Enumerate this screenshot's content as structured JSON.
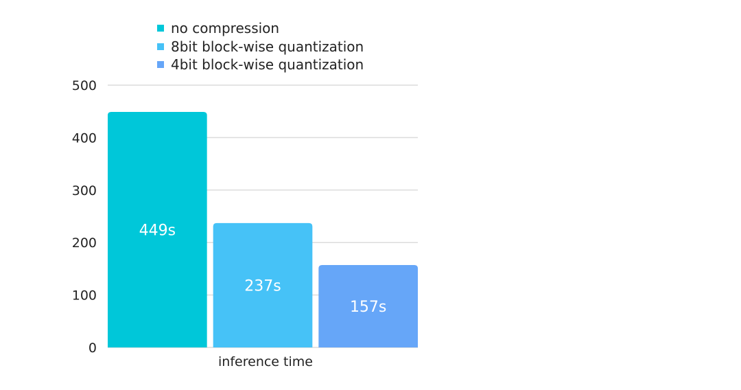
{
  "chart_data": {
    "type": "bar",
    "categories": [
      "inference time"
    ],
    "series": [
      {
        "name": "no compression",
        "values": [
          449
        ],
        "label": "449s",
        "color": "#00c7d9"
      },
      {
        "name": "8bit block-wise quantization",
        "values": [
          237
        ],
        "label": "237s",
        "color": "#46c2f7"
      },
      {
        "name": "4bit block-wise quantization",
        "values": [
          157
        ],
        "label": "157s",
        "color": "#66a6f8"
      }
    ],
    "title": "",
    "xlabel": "",
    "ylabel": "",
    "ylim": [
      0,
      500
    ],
    "yticks": [
      0,
      100,
      200,
      300,
      400,
      500
    ],
    "grid": true,
    "legend_position": "top"
  }
}
